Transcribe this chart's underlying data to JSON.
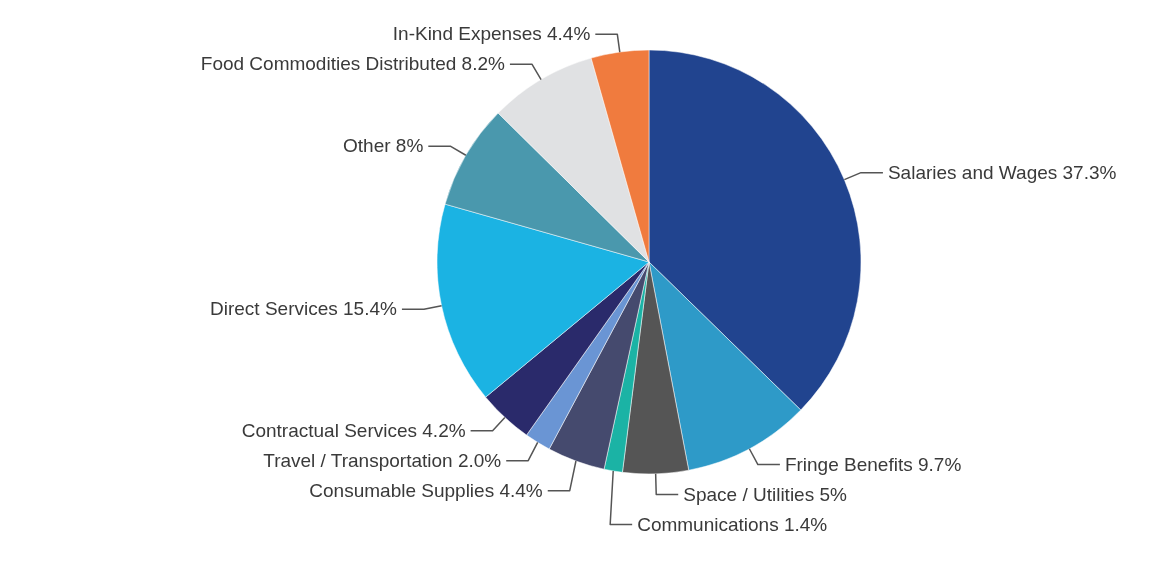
{
  "chart_data": {
    "type": "pie",
    "categories": [
      "Salaries and Wages",
      "Fringe Benefits",
      "Space / Utilities",
      "Communications",
      "Consumable Supplies",
      "Travel / Transportation",
      "Contractual Services",
      "Direct Services",
      "Other",
      "Food Commodities Distributed",
      "In-Kind Expenses"
    ],
    "values": [
      37.3,
      9.7,
      5,
      1.4,
      4.4,
      2.0,
      4.2,
      15.4,
      8,
      8.2,
      4.4
    ],
    "value_labels": [
      "37.3%",
      "9.7%",
      "5%",
      "1.4%",
      "4.4%",
      "2.0%",
      "4.2%",
      "15.4%",
      "8%",
      "8.2%",
      "4.4%"
    ],
    "colors": [
      "#21448f",
      "#2e9ac8",
      "#555555",
      "#1bb3a5",
      "#454a6e",
      "#6a95d4",
      "#2a2a6b",
      "#1bb3e3",
      "#4a98ad",
      "#e0e1e3",
      "#f07b3e"
    ]
  }
}
